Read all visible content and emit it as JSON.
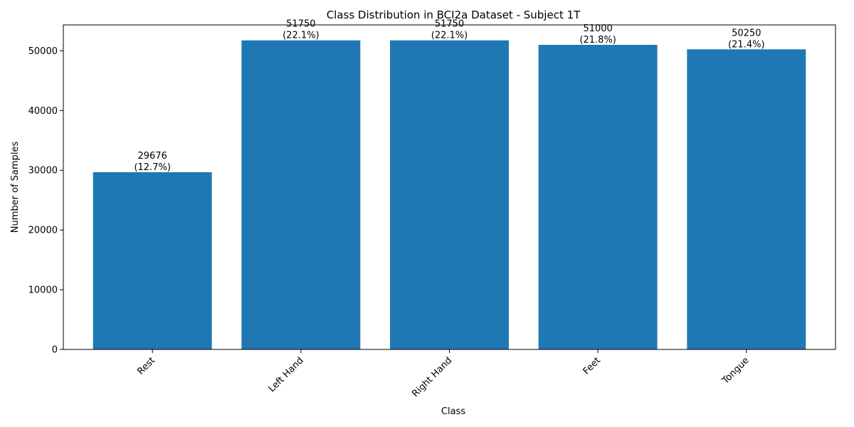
{
  "chart_data": {
    "type": "bar",
    "title": "Class Distribution in BCI2a Dataset - Subject 1T",
    "xlabel": "Class",
    "ylabel": "Number of Samples",
    "categories": [
      "Rest",
      "Left Hand",
      "Right Hand",
      "Feet",
      "Tongue"
    ],
    "values": [
      29676,
      51750,
      51750,
      51000,
      50250
    ],
    "value_labels": [
      "29676",
      "51750",
      "51750",
      "51000",
      "50250"
    ],
    "percent_labels": [
      "(12.7%)",
      "(22.1%)",
      "(22.1%)",
      "(21.8%)",
      "(21.4%)"
    ],
    "ylim": [
      0,
      54337.5
    ],
    "yticks": [
      0,
      10000,
      20000,
      30000,
      40000,
      50000
    ],
    "ytick_labels": [
      "0",
      "10000",
      "20000",
      "30000",
      "40000",
      "50000"
    ],
    "bar_color": "#1f77b4",
    "grid": false,
    "x_tick_rotation_deg": 45
  }
}
